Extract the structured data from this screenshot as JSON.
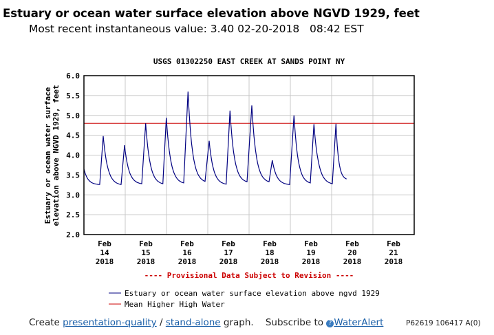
{
  "header": {
    "title": "Estuary or ocean water surface elevation above NGVD 1929, feet",
    "subtitle": "Most recent instantaneous value: 3.40 02-20-2018   08:42 EST"
  },
  "chart_data": {
    "type": "line",
    "title": "USGS 01302250 EAST CREEK AT SANDS POINT NY",
    "ylabel": "Estuary or ocean water surface elevation above NGVD 1929, feet",
    "ylabel_lines": [
      "Estuary or ocean water surface",
      "elevation above NGVD 1929, feet"
    ],
    "xlabel": "",
    "ylim": [
      2.0,
      6.0
    ],
    "xlim": [
      "2018-02-14T00:00",
      "2018-02-22T00:00"
    ],
    "yticks": [
      "2.0",
      "2.5",
      "3.0",
      "3.5",
      "4.0",
      "4.5",
      "5.0",
      "5.5",
      "6.0"
    ],
    "xticks": [
      {
        "month": "Feb",
        "day": "14",
        "year": "2018"
      },
      {
        "month": "Feb",
        "day": "15",
        "year": "2018"
      },
      {
        "month": "Feb",
        "day": "16",
        "year": "2018"
      },
      {
        "month": "Feb",
        "day": "17",
        "year": "2018"
      },
      {
        "month": "Feb",
        "day": "18",
        "year": "2018"
      },
      {
        "month": "Feb",
        "day": "19",
        "year": "2018"
      },
      {
        "month": "Feb",
        "day": "20",
        "year": "2018"
      },
      {
        "month": "Feb",
        "day": "21",
        "year": "2018"
      }
    ],
    "grid": true,
    "series": [
      {
        "name": "Estuary or ocean water surface elevation above ngvd 1929",
        "color": "#000080",
        "points": [
          [
            "2018-02-14T00:00",
            3.65
          ],
          [
            "2018-02-14T09:10",
            3.26
          ],
          [
            "2018-02-14T11:12",
            4.48
          ],
          [
            "2018-02-14T21:36",
            3.26
          ],
          [
            "2018-02-14T23:36",
            4.25
          ],
          [
            "2018-02-15T09:36",
            3.28
          ],
          [
            "2018-02-15T11:53",
            4.8
          ],
          [
            "2018-02-15T21:53",
            3.28
          ],
          [
            "2018-02-15T23:53",
            4.94
          ],
          [
            "2018-02-16T10:00",
            3.3
          ],
          [
            "2018-02-16T12:31",
            5.6
          ],
          [
            "2018-02-16T22:24",
            3.34
          ],
          [
            "2018-02-17T00:48",
            4.36
          ],
          [
            "2018-02-17T10:41",
            3.27
          ],
          [
            "2018-02-17T12:55",
            5.12
          ],
          [
            "2018-02-17T22:48",
            3.33
          ],
          [
            "2018-02-18T01:36",
            5.25
          ],
          [
            "2018-02-18T11:36",
            3.33
          ],
          [
            "2018-02-18T13:30",
            3.87
          ],
          [
            "2018-02-18T23:36",
            3.26
          ],
          [
            "2018-02-19T02:07",
            5.0
          ],
          [
            "2018-02-19T11:36",
            3.3
          ],
          [
            "2018-02-19T13:43",
            4.78
          ],
          [
            "2018-02-20T00:24",
            3.28
          ],
          [
            "2018-02-20T02:31",
            4.79
          ],
          [
            "2018-02-20T08:42",
            3.4
          ]
        ]
      },
      {
        "name": "Mean Higher High Water",
        "color": "#cc0000",
        "constant": 4.8
      }
    ],
    "annotation": "---- Provisional Data Subject to Revision ----",
    "legend_position": "bottom"
  },
  "footer": {
    "create": "Create",
    "link1": "presentation-quality",
    "sep": "/",
    "link2": "stand-alone",
    "graph": "graph.",
    "subscribe": "Subscribe to",
    "link3": "WaterAlert",
    "code": "P62619 106417 A(0)"
  }
}
